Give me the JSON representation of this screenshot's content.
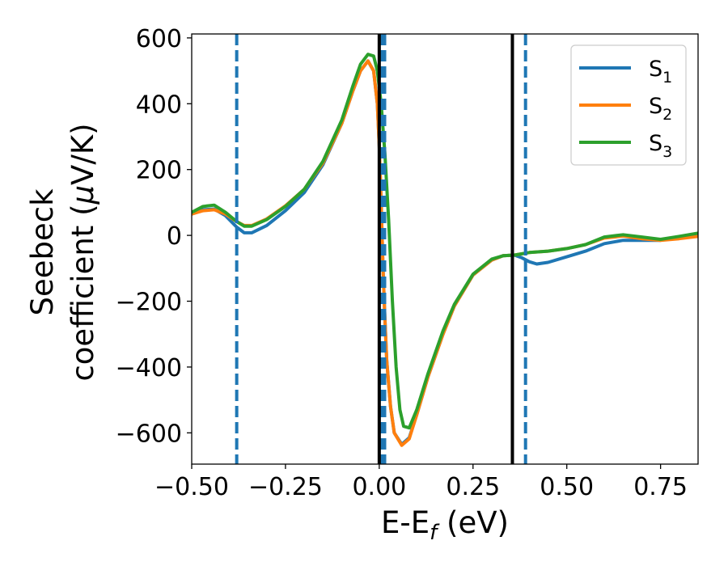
{
  "chart_data": {
    "type": "line",
    "xlabel": {
      "base": "E-E",
      "sub": "f",
      "tail": " (eV)"
    },
    "ylabel": {
      "line1": "Seebeck",
      "line2_pre": "coefficient  (",
      "line2_mu": "μ",
      "line2_post": "V/K)"
    },
    "xlim": [
      -0.5,
      0.85
    ],
    "ylim": [
      -695,
      612
    ],
    "x_ticks": [
      -0.5,
      -0.25,
      0.0,
      0.25,
      0.5,
      0.75
    ],
    "x_tick_labels": [
      "−0.50",
      "−0.25",
      "0.00",
      "0.25",
      "0.50",
      "0.75"
    ],
    "y_ticks": [
      600,
      400,
      200,
      0,
      -200,
      -400,
      -600
    ],
    "y_tick_labels": [
      "600",
      "400",
      "200",
      "0",
      "−200",
      "−400",
      "−600"
    ],
    "grid": false,
    "legend_position": "top-right",
    "series": [
      {
        "name": "S",
        "sub": "1",
        "color": "#1f77b4",
        "points": [
          [
            -0.5,
            65
          ],
          [
            -0.47,
            78
          ],
          [
            -0.44,
            80
          ],
          [
            -0.41,
            60
          ],
          [
            -0.38,
            25
          ],
          [
            -0.36,
            8
          ],
          [
            -0.34,
            8
          ],
          [
            -0.3,
            30
          ],
          [
            -0.25,
            75
          ],
          [
            -0.2,
            130
          ],
          [
            -0.15,
            215
          ],
          [
            -0.1,
            340
          ],
          [
            -0.07,
            440
          ],
          [
            -0.05,
            500
          ],
          [
            -0.03,
            530
          ],
          [
            -0.015,
            500
          ],
          [
            -0.005,
            400
          ],
          [
            0.0,
            270
          ],
          [
            0.005,
            100
          ],
          [
            0.01,
            -100
          ],
          [
            0.015,
            -250
          ],
          [
            0.02,
            -380
          ],
          [
            0.03,
            -520
          ],
          [
            0.04,
            -600
          ],
          [
            0.06,
            -635
          ],
          [
            0.08,
            -615
          ],
          [
            0.1,
            -545
          ],
          [
            0.13,
            -430
          ],
          [
            0.17,
            -300
          ],
          [
            0.2,
            -215
          ],
          [
            0.25,
            -120
          ],
          [
            0.3,
            -75
          ],
          [
            0.33,
            -62
          ],
          [
            0.36,
            -60
          ],
          [
            0.38,
            -68
          ],
          [
            0.4,
            -80
          ],
          [
            0.42,
            -87
          ],
          [
            0.45,
            -82
          ],
          [
            0.5,
            -65
          ],
          [
            0.55,
            -48
          ],
          [
            0.6,
            -25
          ],
          [
            0.65,
            -15
          ],
          [
            0.7,
            -15
          ],
          [
            0.75,
            -15
          ],
          [
            0.8,
            -5
          ],
          [
            0.85,
            5
          ]
        ]
      },
      {
        "name": "S",
        "sub": "2",
        "color": "#ff7f0e",
        "points": [
          [
            -0.5,
            65
          ],
          [
            -0.47,
            75
          ],
          [
            -0.44,
            78
          ],
          [
            -0.41,
            65
          ],
          [
            -0.38,
            42
          ],
          [
            -0.36,
            30
          ],
          [
            -0.34,
            30
          ],
          [
            -0.3,
            50
          ],
          [
            -0.25,
            90
          ],
          [
            -0.2,
            140
          ],
          [
            -0.15,
            220
          ],
          [
            -0.1,
            340
          ],
          [
            -0.07,
            440
          ],
          [
            -0.05,
            500
          ],
          [
            -0.03,
            530
          ],
          [
            -0.015,
            500
          ],
          [
            -0.005,
            400
          ],
          [
            0.0,
            270
          ],
          [
            0.005,
            100
          ],
          [
            0.01,
            -100
          ],
          [
            0.015,
            -250
          ],
          [
            0.02,
            -380
          ],
          [
            0.03,
            -520
          ],
          [
            0.04,
            -600
          ],
          [
            0.06,
            -638
          ],
          [
            0.08,
            -618
          ],
          [
            0.1,
            -545
          ],
          [
            0.13,
            -430
          ],
          [
            0.17,
            -300
          ],
          [
            0.2,
            -215
          ],
          [
            0.25,
            -120
          ],
          [
            0.3,
            -75
          ],
          [
            0.33,
            -62
          ],
          [
            0.36,
            -60
          ],
          [
            0.4,
            -52
          ],
          [
            0.45,
            -48
          ],
          [
            0.5,
            -40
          ],
          [
            0.55,
            -28
          ],
          [
            0.6,
            -8
          ],
          [
            0.65,
            -2
          ],
          [
            0.7,
            -10
          ],
          [
            0.75,
            -15
          ],
          [
            0.8,
            -10
          ],
          [
            0.85,
            -3
          ]
        ]
      },
      {
        "name": "S",
        "sub": "3",
        "color": "#2ca02c",
        "points": [
          [
            -0.5,
            70
          ],
          [
            -0.47,
            88
          ],
          [
            -0.44,
            92
          ],
          [
            -0.41,
            70
          ],
          [
            -0.38,
            42
          ],
          [
            -0.36,
            28
          ],
          [
            -0.34,
            28
          ],
          [
            -0.3,
            48
          ],
          [
            -0.25,
            88
          ],
          [
            -0.2,
            140
          ],
          [
            -0.15,
            225
          ],
          [
            -0.1,
            350
          ],
          [
            -0.07,
            455
          ],
          [
            -0.05,
            520
          ],
          [
            -0.03,
            550
          ],
          [
            -0.015,
            545
          ],
          [
            -0.005,
            500
          ],
          [
            0.005,
            400
          ],
          [
            0.015,
            250
          ],
          [
            0.025,
            50
          ],
          [
            0.035,
            -200
          ],
          [
            0.045,
            -400
          ],
          [
            0.055,
            -530
          ],
          [
            0.065,
            -580
          ],
          [
            0.08,
            -585
          ],
          [
            0.1,
            -530
          ],
          [
            0.13,
            -420
          ],
          [
            0.17,
            -290
          ],
          [
            0.2,
            -210
          ],
          [
            0.25,
            -118
          ],
          [
            0.3,
            -72
          ],
          [
            0.33,
            -62
          ],
          [
            0.36,
            -60
          ],
          [
            0.4,
            -52
          ],
          [
            0.45,
            -48
          ],
          [
            0.5,
            -40
          ],
          [
            0.55,
            -28
          ],
          [
            0.6,
            -5
          ],
          [
            0.65,
            2
          ],
          [
            0.7,
            -5
          ],
          [
            0.75,
            -12
          ],
          [
            0.8,
            -3
          ],
          [
            0.85,
            7
          ]
        ]
      }
    ],
    "vlines": [
      {
        "x": -0.38,
        "style": "dashed",
        "color": "#1f77b4",
        "width": 4
      },
      {
        "x": 0.01,
        "style": "dashed",
        "color": "#1f77b4",
        "width": 8
      },
      {
        "x": 0.39,
        "style": "dashed",
        "color": "#1f77b4",
        "width": 4
      },
      {
        "x": 0.0,
        "style": "solid",
        "color": "#000000",
        "width": 4
      },
      {
        "x": 0.355,
        "style": "solid",
        "color": "#000000",
        "width": 4
      }
    ]
  }
}
